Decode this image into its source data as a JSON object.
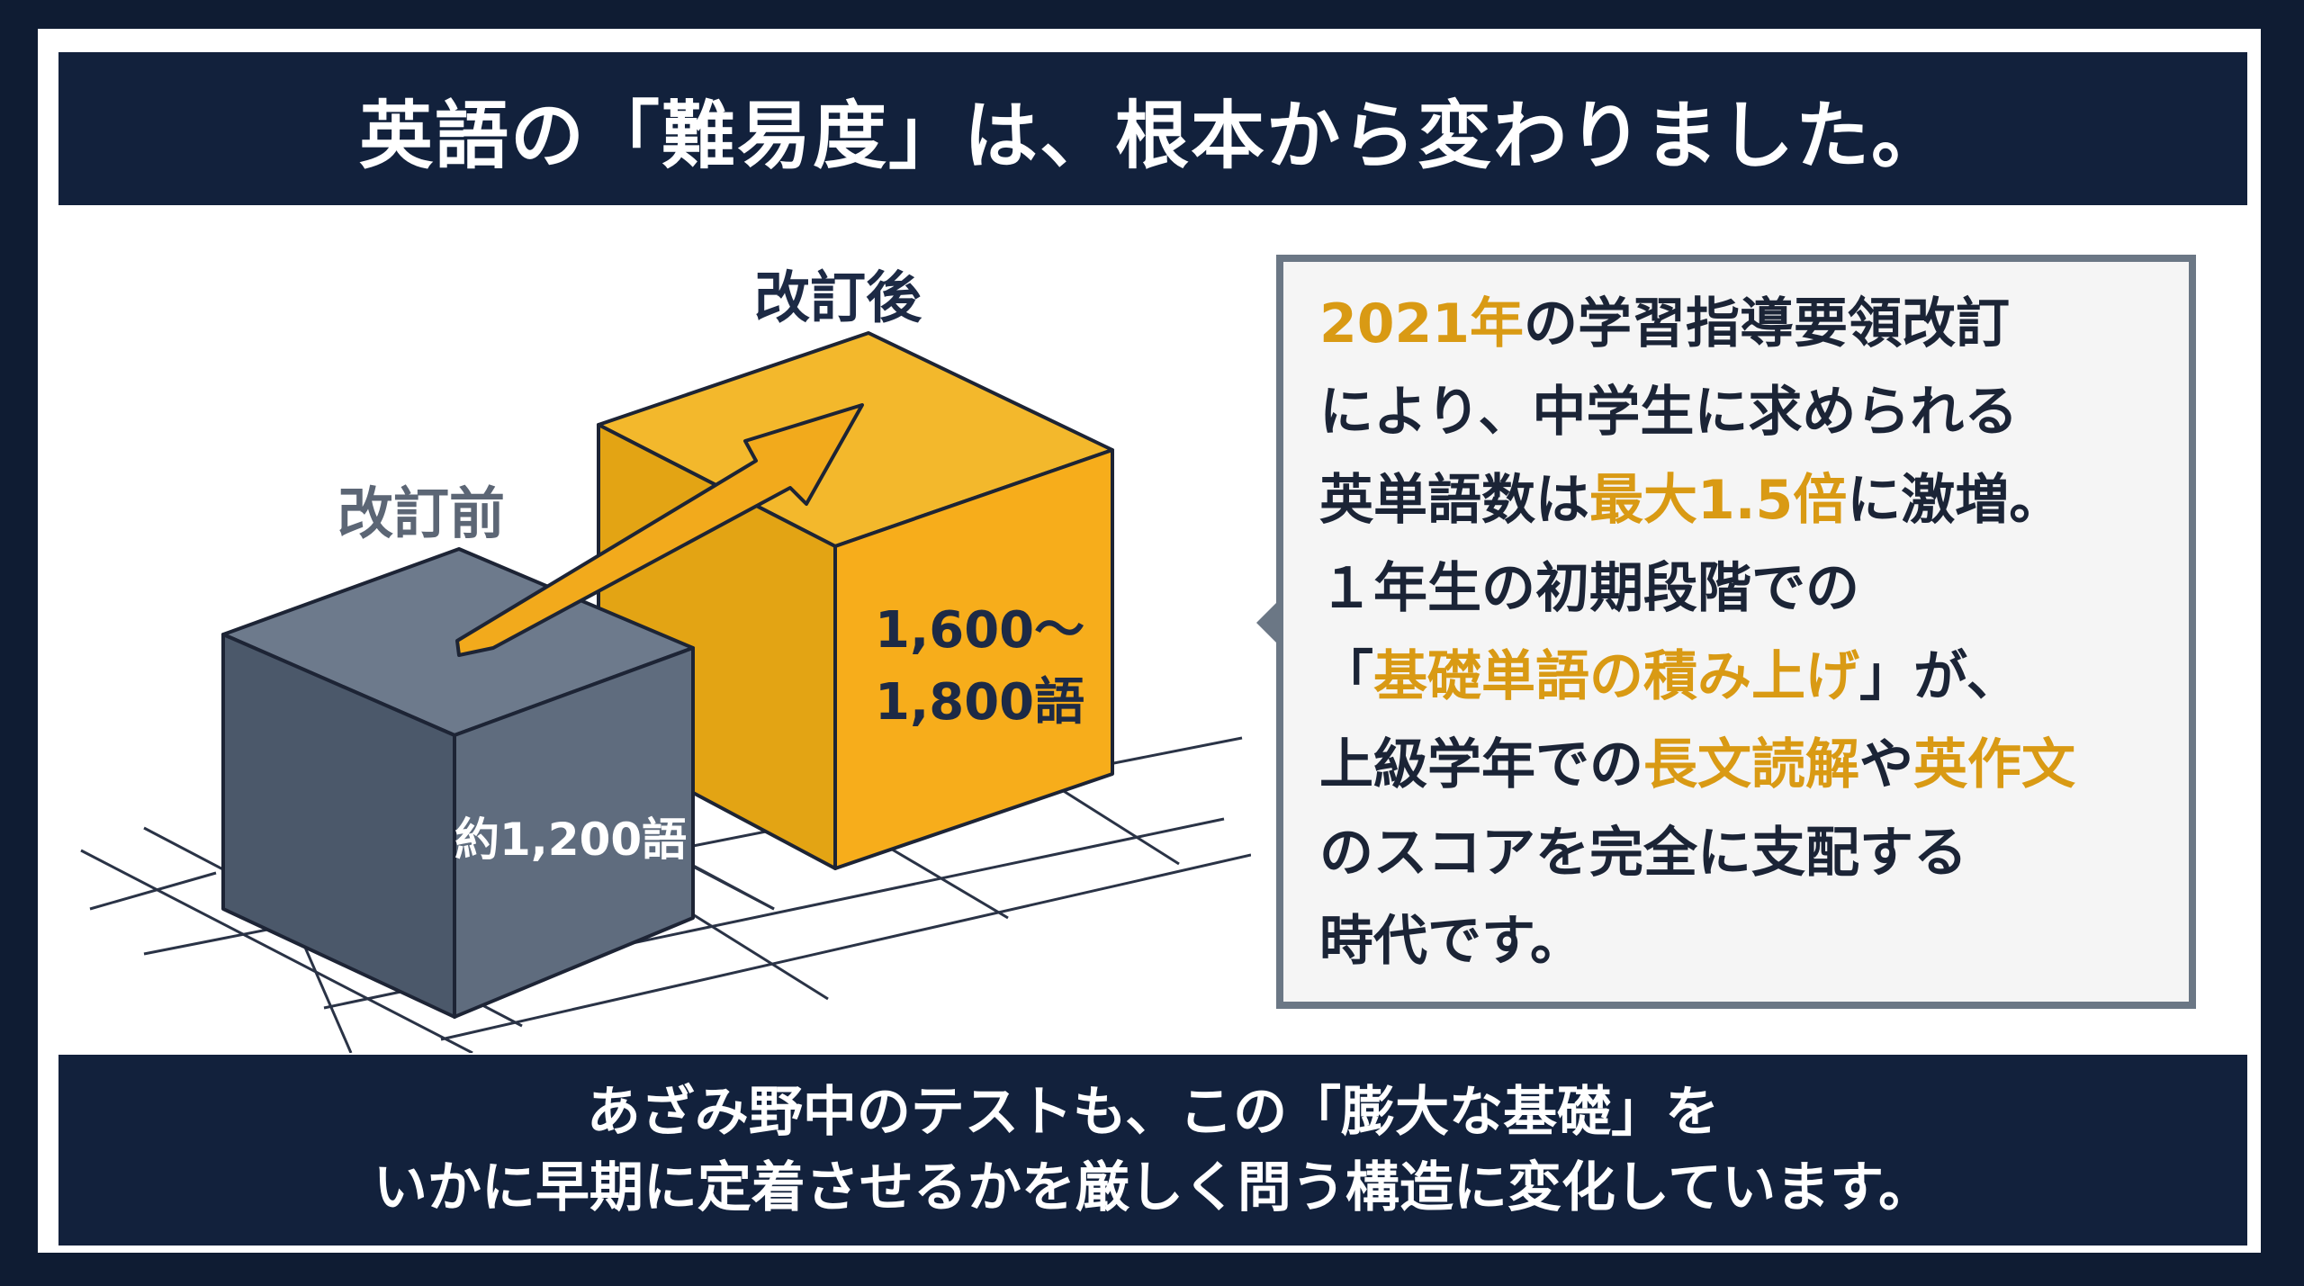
{
  "title": "英語の「難易度」は、根本から変わりました。",
  "chart": {
    "after_label": "改訂後",
    "before_label": "改訂前",
    "before_value": "約1,200語",
    "after_value_line1": "1,600～",
    "after_value_line2": "1,800語",
    "colors": {
      "before_box": "#5b6879",
      "after_box": "#f2aa1c",
      "arrow": "#f2aa1c"
    }
  },
  "callout": {
    "l1_hl": "2021年",
    "l1_rest": "の学習指導要領改訂",
    "l2": "により、中学生に求められる",
    "l3_a": "英単語数は",
    "l3_hl": "最大1.5倍",
    "l3_b": "に激増。",
    "l4": "１年生の初期段階での",
    "l5_a": "「",
    "l5_hl": "基礎単語の積み上げ",
    "l5_b": "」が、",
    "l6_a": "上級学年での",
    "l6_hl1": "長文読解",
    "l6_mid": "や",
    "l6_hl2": "英作文",
    "l7": "のスコアを完全に支配する",
    "l8": "時代です。"
  },
  "footer": {
    "line1": "あざみ野中のテストも、この「膨大な基礎」を",
    "line2": "いかに早期に定着させるかを厳しく問う構造に変化しています。"
  }
}
